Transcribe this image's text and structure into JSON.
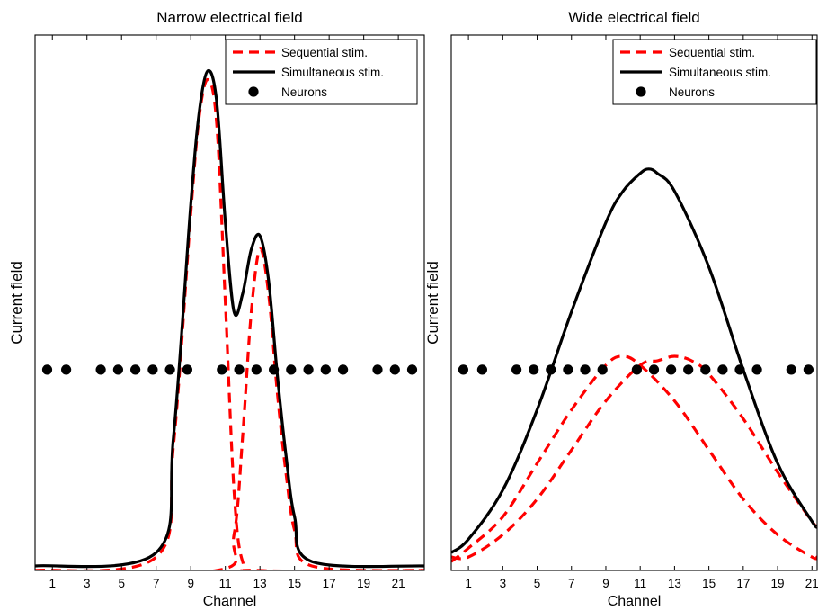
{
  "chart_data": [
    {
      "type": "line",
      "title": "Narrow electrical field",
      "xlabel": "Channel",
      "ylabel": "Current field",
      "xlim": [
        0,
        22.5
      ],
      "ylim": [
        0,
        1.2
      ],
      "x_tick_labels": [
        "1",
        "3",
        "5",
        "7",
        "9",
        "11",
        "13",
        "15",
        "17",
        "19",
        "21"
      ],
      "y_tick_labels": [],
      "legend_position": "top-right",
      "legend": [
        "Sequential stim.",
        "Simultaneous stim.",
        "Neurons"
      ],
      "series": [
        {
          "name": "Sequential stim.",
          "style": "dashed",
          "color": "#ff0000",
          "x": [
            0,
            7,
            8,
            9,
            9.5,
            10,
            10.5,
            11,
            11.5,
            12,
            13,
            22.5
          ],
          "y": [
            0,
            0.03,
            0.28,
            0.8,
            1.02,
            1.1,
            1.0,
            0.6,
            0.18,
            0.02,
            0,
            0
          ]
        },
        {
          "name": "Sequential stim.",
          "style": "dashed",
          "color": "#ff0000",
          "x": [
            0,
            10.5,
            11.5,
            12,
            12.5,
            13,
            13.5,
            14,
            14.5,
            15,
            16,
            22.5
          ],
          "y": [
            0,
            0.0,
            0.08,
            0.3,
            0.58,
            0.72,
            0.62,
            0.4,
            0.22,
            0.09,
            0.01,
            0
          ]
        },
        {
          "name": "Simultaneous stim.",
          "style": "solid",
          "color": "#000000",
          "x": [
            0,
            7,
            8,
            9,
            9.5,
            10,
            10.5,
            11,
            11.5,
            12,
            12.5,
            13,
            13.5,
            14,
            14.5,
            15,
            16,
            22.5
          ],
          "y": [
            0.01,
            0.04,
            0.3,
            0.82,
            1.03,
            1.12,
            1.05,
            0.78,
            0.58,
            0.62,
            0.72,
            0.75,
            0.65,
            0.44,
            0.26,
            0.12,
            0.02,
            0.01
          ]
        },
        {
          "name": "Neurons",
          "style": "points",
          "color": "#000000",
          "x": [
            0.7,
            1.8,
            3.8,
            4.8,
            5.8,
            6.8,
            7.8,
            8.8,
            10.8,
            11.8,
            12.8,
            13.8,
            14.8,
            15.8,
            16.8,
            17.8,
            19.8,
            20.8,
            21.8
          ],
          "y": [
            0.45,
            0.45,
            0.45,
            0.45,
            0.45,
            0.45,
            0.45,
            0.45,
            0.45,
            0.45,
            0.45,
            0.45,
            0.45,
            0.45,
            0.45,
            0.45,
            0.45,
            0.45,
            0.45
          ]
        }
      ]
    },
    {
      "type": "line",
      "title": "Wide electrical field",
      "xlabel": "Channel",
      "ylabel": "Current field",
      "xlim": [
        0,
        21.3
      ],
      "ylim": [
        0,
        1.2
      ],
      "x_tick_labels": [
        "1",
        "3",
        "5",
        "7",
        "9",
        "11",
        "13",
        "15",
        "17",
        "19",
        "21"
      ],
      "y_tick_labels": [],
      "legend_position": "top-right",
      "legend": [
        "Sequential stim.",
        "Simultaneous stim.",
        "Neurons"
      ],
      "series": [
        {
          "name": "Sequential stim.",
          "style": "dashed",
          "color": "#ff0000",
          "x": [
            0,
            1,
            3,
            5,
            7,
            9,
            10,
            11,
            13,
            15,
            17,
            19,
            21,
            21.3
          ],
          "y": [
            0.02,
            0.05,
            0.12,
            0.24,
            0.36,
            0.46,
            0.48,
            0.46,
            0.38,
            0.27,
            0.16,
            0.08,
            0.03,
            0.03
          ]
        },
        {
          "name": "Sequential stim.",
          "style": "dashed",
          "color": "#ff0000",
          "x": [
            0,
            1,
            3,
            5,
            7,
            9,
            11,
            12,
            13,
            14,
            15,
            17,
            19,
            21,
            21.3
          ],
          "y": [
            0.03,
            0.03,
            0.08,
            0.16,
            0.27,
            0.38,
            0.46,
            0.47,
            0.48,
            0.47,
            0.44,
            0.34,
            0.22,
            0.11,
            0.1
          ]
        },
        {
          "name": "Simultaneous stim.",
          "style": "solid",
          "color": "#000000",
          "x": [
            0,
            1,
            3,
            5,
            7,
            9,
            10,
            11,
            11.5,
            12,
            13,
            15,
            17,
            19,
            21,
            21.3
          ],
          "y": [
            0.04,
            0.07,
            0.18,
            0.36,
            0.58,
            0.78,
            0.85,
            0.89,
            0.9,
            0.89,
            0.85,
            0.68,
            0.45,
            0.24,
            0.11,
            0.1
          ]
        },
        {
          "name": "Neurons",
          "style": "points",
          "color": "#000000",
          "x": [
            0.7,
            1.8,
            3.8,
            4.8,
            5.8,
            6.8,
            7.8,
            8.8,
            10.8,
            11.8,
            12.8,
            13.8,
            14.8,
            15.8,
            16.8,
            17.8,
            19.8,
            20.8,
            21.8
          ],
          "y": [
            0.45,
            0.45,
            0.45,
            0.45,
            0.45,
            0.45,
            0.45,
            0.45,
            0.45,
            0.45,
            0.45,
            0.45,
            0.45,
            0.45,
            0.45,
            0.45,
            0.45,
            0.45,
            0.45
          ]
        }
      ]
    }
  ]
}
